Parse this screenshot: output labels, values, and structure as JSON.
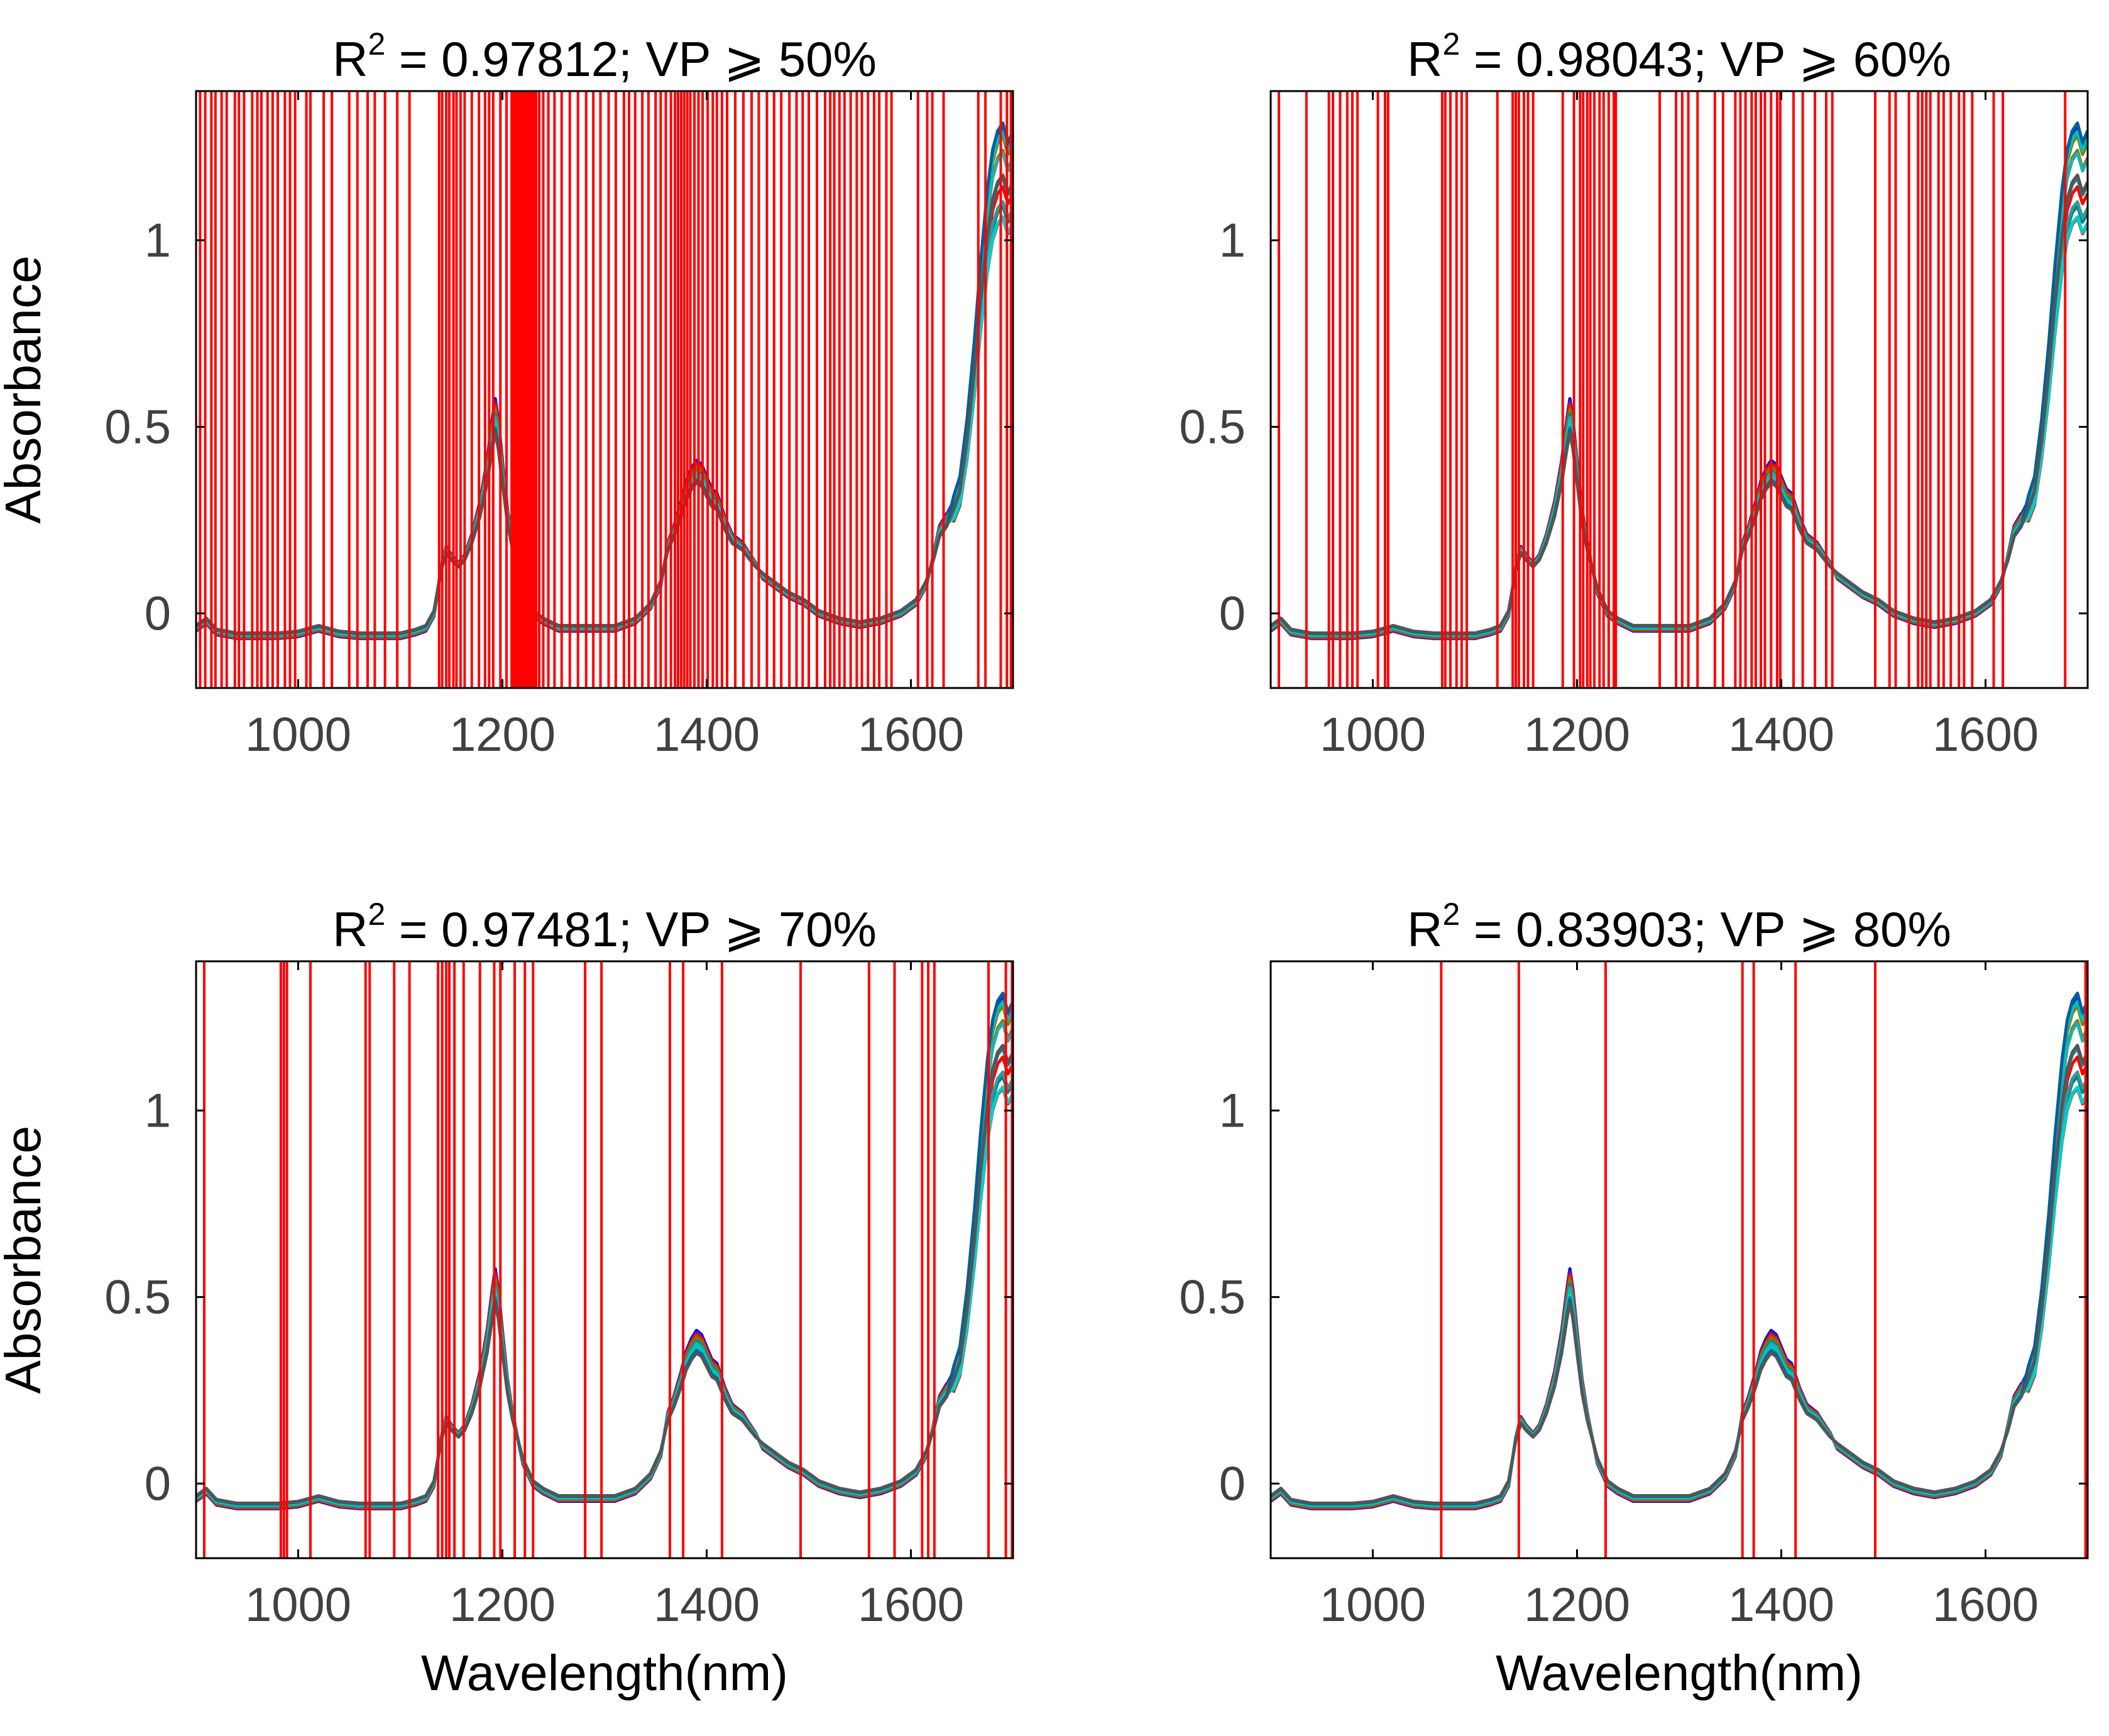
{
  "figure": {
    "background": "#ffffff"
  },
  "chart_data": [
    {
      "type": "line",
      "title": {
        "prefix": "R",
        "sup": "2",
        "rest": " = 0.97812; VP ⩾ 50%"
      },
      "r2": 0.97812,
      "vp_threshold_percent": 50,
      "xlabel": "",
      "ylabel": "Absorbance",
      "xlim": [
        900,
        1700
      ],
      "ylim": [
        -0.2,
        1.4
      ],
      "xticks": [
        1000,
        1200,
        1400,
        1600
      ],
      "xtick_labels": [
        "1000",
        "1200",
        "1400",
        "1600"
      ],
      "yticks": [
        0,
        0.5,
        1
      ],
      "ytick_labels": [
        "0",
        "0.5",
        "1"
      ],
      "grid": false,
      "marker_color": "#ff0000",
      "selected_wavelengths_nm": [
        904,
        909,
        915,
        919,
        925,
        930,
        938,
        942,
        947,
        955,
        960,
        964,
        970,
        975,
        980,
        987,
        992,
        997,
        1008,
        1012,
        1025,
        1033,
        1050,
        1058,
        1068,
        1075,
        1085,
        1097,
        1109,
        1138,
        1141,
        1145,
        1148,
        1152,
        1155,
        1159,
        1163,
        1170,
        1177,
        1183,
        1187,
        1191,
        1198,
        1204,
        1209,
        1211,
        1213,
        1215,
        1217,
        1219,
        1221,
        1223,
        1225,
        1227,
        1229,
        1231,
        1233,
        1236,
        1240,
        1245,
        1251,
        1258,
        1266,
        1274,
        1282,
        1289,
        1296,
        1304,
        1311,
        1319,
        1324,
        1330,
        1337,
        1343,
        1350,
        1355,
        1360,
        1365,
        1369,
        1372,
        1375,
        1378,
        1381,
        1384,
        1388,
        1392,
        1396,
        1401,
        1406,
        1410,
        1415,
        1420,
        1428,
        1436,
        1444,
        1451,
        1459,
        1466,
        1473,
        1481,
        1488,
        1494,
        1500,
        1508,
        1516,
        1521,
        1525,
        1530,
        1535,
        1541,
        1547,
        1552,
        1558,
        1564,
        1569,
        1576,
        1581,
        1607,
        1616,
        1621,
        1632,
        1666,
        1673,
        1688,
        1694,
        1698
      ]
    },
    {
      "type": "line",
      "title": {
        "prefix": "R",
        "sup": "2",
        "rest": " = 0.98043; VP ⩾ 60%"
      },
      "r2": 0.98043,
      "vp_threshold_percent": 60,
      "xlabel": "",
      "ylabel": "",
      "xlim": [
        900,
        1700
      ],
      "ylim": [
        -0.2,
        1.4
      ],
      "xticks": [
        1000,
        1200,
        1400,
        1600
      ],
      "xtick_labels": [
        "1000",
        "1200",
        "1400",
        "1600"
      ],
      "yticks": [
        0,
        0.5,
        1
      ],
      "ytick_labels": [
        "0",
        "0.5",
        "1"
      ],
      "grid": false,
      "marker_color": "#ff0000",
      "selected_wavelengths_nm": [
        908,
        935,
        957,
        961,
        968,
        975,
        980,
        985,
        1005,
        1012,
        1015,
        1068,
        1071,
        1076,
        1082,
        1087,
        1092,
        1122,
        1137,
        1140,
        1143,
        1148,
        1152,
        1157,
        1186,
        1197,
        1203,
        1206,
        1210,
        1213,
        1217,
        1222,
        1226,
        1231,
        1236,
        1238,
        1281,
        1297,
        1303,
        1309,
        1318,
        1335,
        1343,
        1355,
        1360,
        1365,
        1371,
        1375,
        1380,
        1384,
        1390,
        1396,
        1399,
        1412,
        1421,
        1433,
        1444,
        1450,
        1492,
        1506,
        1512,
        1525,
        1534,
        1538,
        1542,
        1546,
        1554,
        1559,
        1566,
        1574,
        1579,
        1587,
        1608,
        1617,
        1678
      ]
    },
    {
      "type": "line",
      "title": {
        "prefix": "R",
        "sup": "2",
        "rest": " = 0.97481; VP ⩾ 70%"
      },
      "r2": 0.97481,
      "vp_threshold_percent": 70,
      "xlabel": "",
      "ylabel": "Absorbance",
      "xlim": [
        900,
        1700
      ],
      "ylim": [
        -0.2,
        1.4
      ],
      "xticks": [
        1000,
        1200,
        1400,
        1600
      ],
      "xtick_labels": [
        "1000",
        "1200",
        "1400",
        "1600"
      ],
      "yticks": [
        0,
        0.5,
        1
      ],
      "ytick_labels": [
        "0",
        "0.5",
        "1"
      ],
      "grid": false,
      "marker_color": "#ff0000",
      "selected_wavelengths_nm": [
        908,
        983,
        986,
        989,
        1012,
        1066,
        1070,
        1094,
        1109,
        1137,
        1141,
        1145,
        1148,
        1153,
        1162,
        1178,
        1192,
        1198,
        1212,
        1222,
        1230,
        1281,
        1297,
        1364,
        1377,
        1415,
        1492,
        1559,
        1584,
        1611,
        1617,
        1623,
        1676,
        1693,
        1699
      ]
    },
    {
      "type": "line",
      "title": {
        "prefix": "R",
        "sup": "2",
        "rest": " = 0.83903; VP ⩾ 80%"
      },
      "r2": 0.83903,
      "vp_threshold_percent": 80,
      "xlabel": "",
      "ylabel": "",
      "xlim": [
        900,
        1700
      ],
      "ylim": [
        -0.2,
        1.4
      ],
      "xticks": [
        1000,
        1200,
        1400,
        1600
      ],
      "xtick_labels": [
        "1000",
        "1200",
        "1400",
        "1600"
      ],
      "yticks": [
        0,
        0.5,
        1
      ],
      "ytick_labels": [
        "0",
        "0.5",
        "1"
      ],
      "grid": false,
      "marker_color": "#ff0000",
      "selected_wavelengths_nm": [
        1067,
        1143,
        1228,
        1362,
        1373,
        1414,
        1492,
        1698
      ]
    }
  ],
  "xlabel_bottom": "Wavelength(nm)",
  "spectra": {
    "description_key": "many overlapping NIR absorbance spectra",
    "x": [
      900,
      910,
      920,
      940,
      960,
      980,
      1000,
      1020,
      1040,
      1060,
      1080,
      1100,
      1115,
      1125,
      1133,
      1140,
      1145,
      1150,
      1157,
      1163,
      1170,
      1178,
      1185,
      1190,
      1193,
      1196,
      1200,
      1205,
      1210,
      1220,
      1230,
      1240,
      1255,
      1270,
      1290,
      1310,
      1330,
      1345,
      1355,
      1362,
      1368,
      1375,
      1380,
      1385,
      1390,
      1395,
      1400,
      1405,
      1410,
      1418,
      1425,
      1430,
      1435,
      1440,
      1448,
      1455,
      1465,
      1480,
      1495,
      1510,
      1530,
      1550,
      1570,
      1590,
      1605,
      1615,
      1622,
      1628,
      1635,
      1642,
      1648,
      1655,
      1662,
      1668,
      1675,
      1680,
      1685,
      1690,
      1695,
      1700
    ],
    "y": [
      -0.04,
      -0.02,
      -0.05,
      -0.06,
      -0.06,
      -0.06,
      -0.055,
      -0.04,
      -0.055,
      -0.06,
      -0.06,
      -0.06,
      -0.05,
      -0.04,
      0.0,
      0.12,
      0.17,
      0.15,
      0.13,
      0.15,
      0.2,
      0.28,
      0.38,
      0.48,
      0.53,
      0.48,
      0.38,
      0.26,
      0.18,
      0.06,
      0.0,
      -0.02,
      -0.04,
      -0.04,
      -0.04,
      -0.04,
      -0.02,
      0.02,
      0.08,
      0.18,
      0.22,
      0.28,
      0.33,
      0.36,
      0.38,
      0.37,
      0.34,
      0.31,
      0.3,
      0.24,
      0.2,
      0.19,
      0.18,
      0.16,
      0.13,
      0.1,
      0.08,
      0.05,
      0.03,
      0.0,
      -0.02,
      -0.03,
      -0.02,
      0.0,
      0.03,
      0.08,
      0.15,
      0.22,
      0.25,
      0.3,
      0.35,
      0.5,
      0.7,
      0.9,
      1.1,
      1.2,
      1.25,
      1.27,
      1.22,
      1.25
    ],
    "colors": [
      "#0000ff",
      "#2020d8",
      "#ff0000",
      "#cc3300",
      "#996600",
      "#808000",
      "#008080",
      "#339999",
      "#00bfbf",
      "#20b2aa",
      "#00ced1",
      "#0a8a9a",
      "#005f99",
      "#555555"
    ]
  }
}
